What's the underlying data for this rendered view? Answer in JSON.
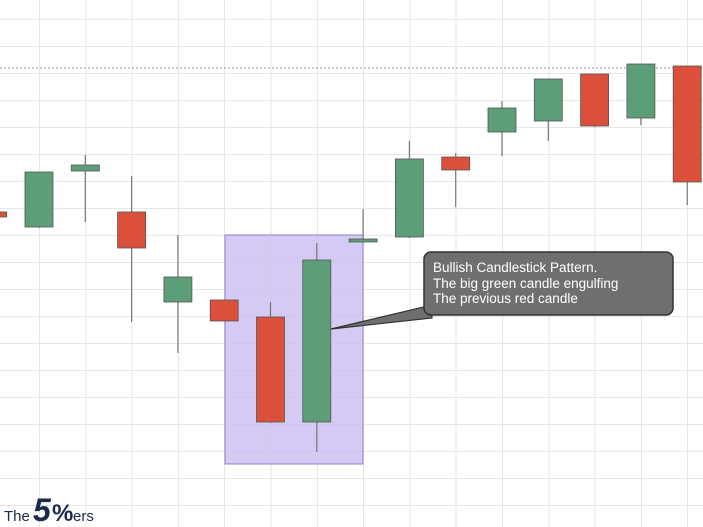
{
  "chart_data": {
    "type": "candlestick",
    "open": [
      315,
      300,
      356,
      315,
      225,
      227,
      210,
      105,
      285,
      290,
      370,
      395,
      406,
      453,
      409,
      461
    ],
    "high": [
      315,
      355,
      372,
      351,
      292,
      227,
      225,
      284,
      318,
      386,
      374,
      426,
      448,
      453,
      463,
      461
    ],
    "low": [
      310,
      299,
      305,
      205,
      174,
      206,
      104,
      75,
      285,
      289,
      320,
      371,
      386,
      400,
      402,
      322
    ],
    "close": [
      310,
      355,
      362,
      279,
      250,
      206,
      105,
      267,
      288,
      368,
      357,
      419,
      448,
      401,
      463,
      345
    ],
    "up_color": "#5c9e78",
    "down_color": "#db4f3b",
    "ylim": [
      0,
      527
    ],
    "reference_line": 459,
    "annotation": [
      "Bullish Candlestick Pattern.",
      "The big green candle engulfing",
      "The previous red candle"
    ]
  },
  "logo": {
    "prefix": "The",
    "number": "5",
    "symbol": "%",
    "suffix": "ers"
  }
}
